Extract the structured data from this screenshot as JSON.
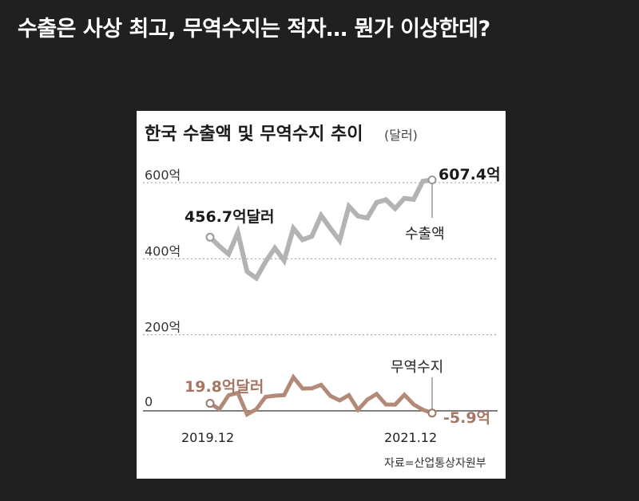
{
  "headline": "수출은 사상 최고, 무역수지는 적자… 뭔가 이상한데?",
  "chart_data": {
    "type": "line",
    "title": "한국 수출액 및 무역수지 추이",
    "unit": "(달러)",
    "y_ticks": [
      "600억",
      "400억",
      "200억",
      "0"
    ],
    "y_tick_values": [
      600,
      400,
      200,
      0
    ],
    "ylim": [
      -10,
      640
    ],
    "x_start_label": "2019.12",
    "x_end_label": "2021.12",
    "x": [
      "2019.12",
      "2020.01",
      "2020.02",
      "2020.03",
      "2020.04",
      "2020.05",
      "2020.06",
      "2020.07",
      "2020.08",
      "2020.09",
      "2020.10",
      "2020.11",
      "2020.12",
      "2021.01",
      "2021.02",
      "2021.03",
      "2021.04",
      "2021.05",
      "2021.06",
      "2021.07",
      "2021.08",
      "2021.09",
      "2021.10",
      "2021.11",
      "2021.12"
    ],
    "series": [
      {
        "name": "수출액",
        "color": "#b3b3b3",
        "values": [
          456.7,
          433,
          412,
          469,
          366,
          349,
          392,
          428,
          395,
          480,
          450,
          459,
          514,
          480,
          448,
          538,
          512,
          507,
          548,
          555,
          532,
          559,
          556,
          604,
          607.4
        ],
        "start_label": "456.7억달러",
        "end_label": "607.4억"
      },
      {
        "name": "무역수지",
        "color": "#b38a78",
        "values": [
          19.8,
          4.2,
          41.2,
          47.1,
          -9.5,
          4.5,
          36.8,
          39.8,
          41.4,
          88.6,
          58.6,
          59.2,
          68.5,
          39.5,
          27.4,
          41.3,
          2.8,
          29.5,
          44.3,
          16.8,
          16.4,
          42.1,
          17.0,
          3.0,
          -5.9
        ],
        "start_label": "19.8억달러",
        "end_label": "-5.9억"
      }
    ],
    "source": "자료=산업통상자원부",
    "grid": true
  }
}
